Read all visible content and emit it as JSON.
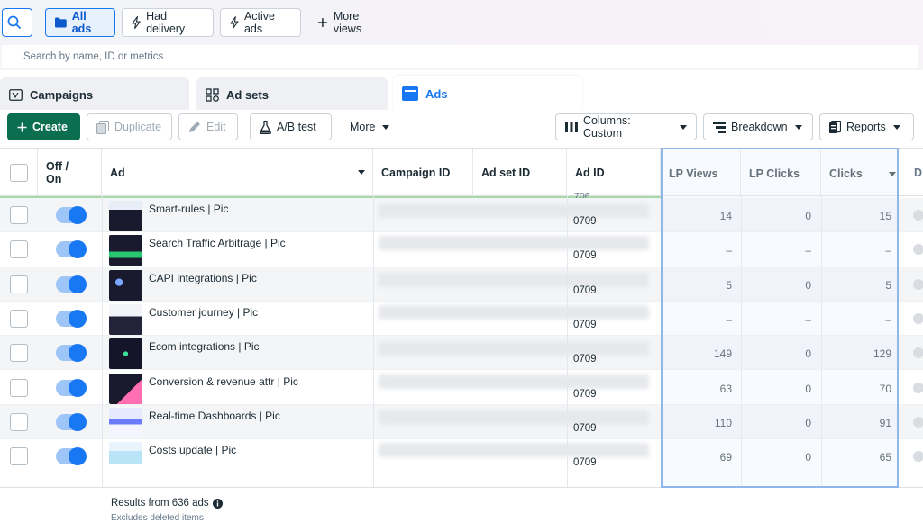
{
  "filters": {
    "all_ads": "All ads",
    "had_delivery": "Had delivery",
    "active_ads": "Active ads",
    "more_views": "More views"
  },
  "search": {
    "placeholder": "Search by name, ID or metrics"
  },
  "tabs": {
    "campaigns": "Campaigns",
    "ad_sets": "Ad sets",
    "ads": "Ads"
  },
  "toolbar": {
    "create": "Create",
    "duplicate": "Duplicate",
    "edit": "Edit",
    "ab_test": "A/B test",
    "more": "More",
    "columns": "Columns: Custom",
    "breakdown": "Breakdown",
    "reports": "Reports"
  },
  "table": {
    "headers": {
      "off_on": "Off / On",
      "ad": "Ad",
      "campaign_id": "Campaign ID",
      "ad_set_id": "Ad set ID",
      "ad_id": "Ad ID",
      "lp_views": "LP Views",
      "lp_clicks": "LP Clicks",
      "clicks": "Clicks",
      "next_partial": "D"
    },
    "partial_top_id": "706",
    "rows": [
      {
        "name": "Smart-rules | Pic",
        "ad_id": "0709",
        "lp_views": "14",
        "lp_clicks": "0",
        "clicks": "15"
      },
      {
        "name": "Search Traffic Arbitrage | Pic",
        "ad_id": "0709",
        "lp_views": "–",
        "lp_clicks": "–",
        "clicks": "–"
      },
      {
        "name": "CAPI integrations | Pic",
        "ad_id": "0709",
        "lp_views": "5",
        "lp_clicks": "0",
        "clicks": "5"
      },
      {
        "name": "Customer journey | Pic",
        "ad_id": "0709",
        "lp_views": "–",
        "lp_clicks": "–",
        "clicks": "–"
      },
      {
        "name": "Ecom integrations | Pic",
        "ad_id": "0709",
        "lp_views": "149",
        "lp_clicks": "0",
        "clicks": "129"
      },
      {
        "name": "Conversion & revenue attr | Pic",
        "ad_id": "0709",
        "lp_views": "63",
        "lp_clicks": "0",
        "clicks": "70"
      },
      {
        "name": "Real-time Dashboards | Pic",
        "ad_id": "0709",
        "lp_views": "110",
        "lp_clicks": "0",
        "clicks": "91"
      },
      {
        "name": "Costs update | Pic",
        "ad_id": "0709",
        "lp_views": "69",
        "lp_clicks": "0",
        "clicks": "65"
      }
    ],
    "footer": {
      "results": "Results from 636 ads",
      "excludes": "Excludes deleted items"
    }
  },
  "colors": {
    "accent": "#1877f2",
    "create_green": "#0b6e4f",
    "selection_border": "#8fb8e8"
  }
}
